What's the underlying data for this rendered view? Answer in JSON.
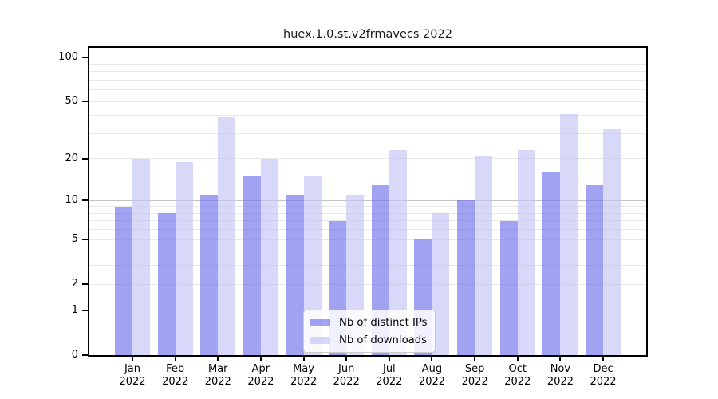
{
  "title": "huex.1.0.st.v2frmavecs 2022",
  "chart_data": {
    "type": "bar",
    "title": "huex.1.0.st.v2frmavecs 2022",
    "categories": [
      "Jan 2022",
      "Feb 2022",
      "Mar 2022",
      "Apr 2022",
      "May 2022",
      "Jun 2022",
      "Jul 2022",
      "Aug 2022",
      "Sep 2022",
      "Oct 2022",
      "Nov 2022",
      "Dec 2022"
    ],
    "x_months": [
      "Jan",
      "Feb",
      "Mar",
      "Apr",
      "May",
      "Jun",
      "Jul",
      "Aug",
      "Sep",
      "Oct",
      "Nov",
      "Dec"
    ],
    "x_year": "2022",
    "series": [
      {
        "name": "Nb of distinct IPs",
        "color": "rgba(112,112,235,0.65)",
        "values": [
          9,
          8,
          11,
          15,
          11,
          7,
          13,
          5,
          10,
          7,
          16,
          13
        ]
      },
      {
        "name": "Nb of downloads",
        "color": "rgba(195,195,244,0.65)",
        "values": [
          20,
          19,
          39,
          20,
          15,
          11,
          23,
          8,
          21,
          23,
          41,
          32
        ]
      }
    ],
    "y_scale": "log1p",
    "y_ticks": [
      {
        "label": "100",
        "value": 100
      },
      {
        "label": "50",
        "value": 50
      },
      {
        "label": "20",
        "value": 20
      },
      {
        "label": "10",
        "value": 10
      },
      {
        "label": "5",
        "value": 5
      },
      {
        "label": "2",
        "value": 2
      },
      {
        "label": "1",
        "value": 1
      },
      {
        "label": "0",
        "value": 0
      }
    ],
    "y_major_gridlines": [
      1,
      10,
      100
    ],
    "y_minor_gridlines": [
      2,
      3,
      4,
      5,
      6,
      7,
      8,
      9,
      20,
      30,
      40,
      50,
      60,
      70,
      80,
      90
    ],
    "ylim": [
      0,
      116
    ],
    "grid": true,
    "legend_position": "lower center"
  },
  "colors": {
    "background": "#ffffff",
    "spine": "#000000",
    "text": "#000000",
    "grid_major": "#c4c4c4",
    "grid_minor": "#e8e8e8",
    "legend_border": "#cccccc",
    "legend_bg": "rgba(255,255,255,0.85)"
  }
}
